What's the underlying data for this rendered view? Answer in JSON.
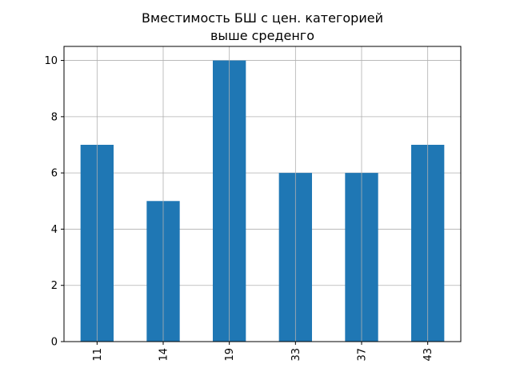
{
  "chart_data": {
    "type": "bar",
    "title_lines": [
      "Вместимость БШ с цен. категорией",
      "выше среденго"
    ],
    "categories": [
      "11",
      "14",
      "19",
      "33",
      "37",
      "43"
    ],
    "values": [
      7,
      5,
      10,
      6,
      6,
      7
    ],
    "yticks": [
      0,
      2,
      4,
      6,
      8,
      10
    ],
    "ylim": [
      0,
      10.5
    ],
    "xlabel": "",
    "ylabel": "",
    "grid": true,
    "bar_color": "#1f77b4",
    "grid_color": "#b0b0b0",
    "x_tick_rotation": "vertical"
  }
}
